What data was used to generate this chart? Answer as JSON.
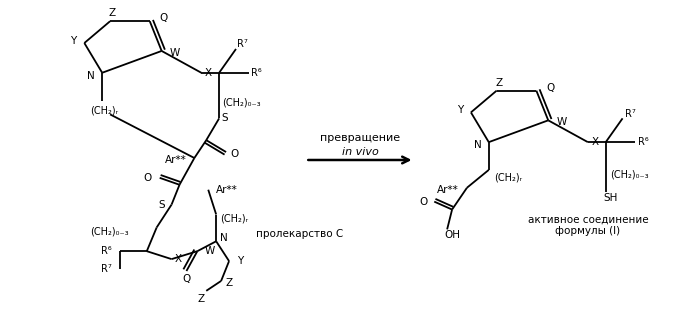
{
  "bg_color": "#ffffff",
  "fig_width": 6.98,
  "fig_height": 3.17,
  "dpi": 100,
  "arrow_label_line1": "превращение",
  "arrow_label_line2": "in vivo",
  "label_prodrug": "пролекарство С",
  "label_active_line1": "активное соединение",
  "label_active_line2": "формулы (I)"
}
